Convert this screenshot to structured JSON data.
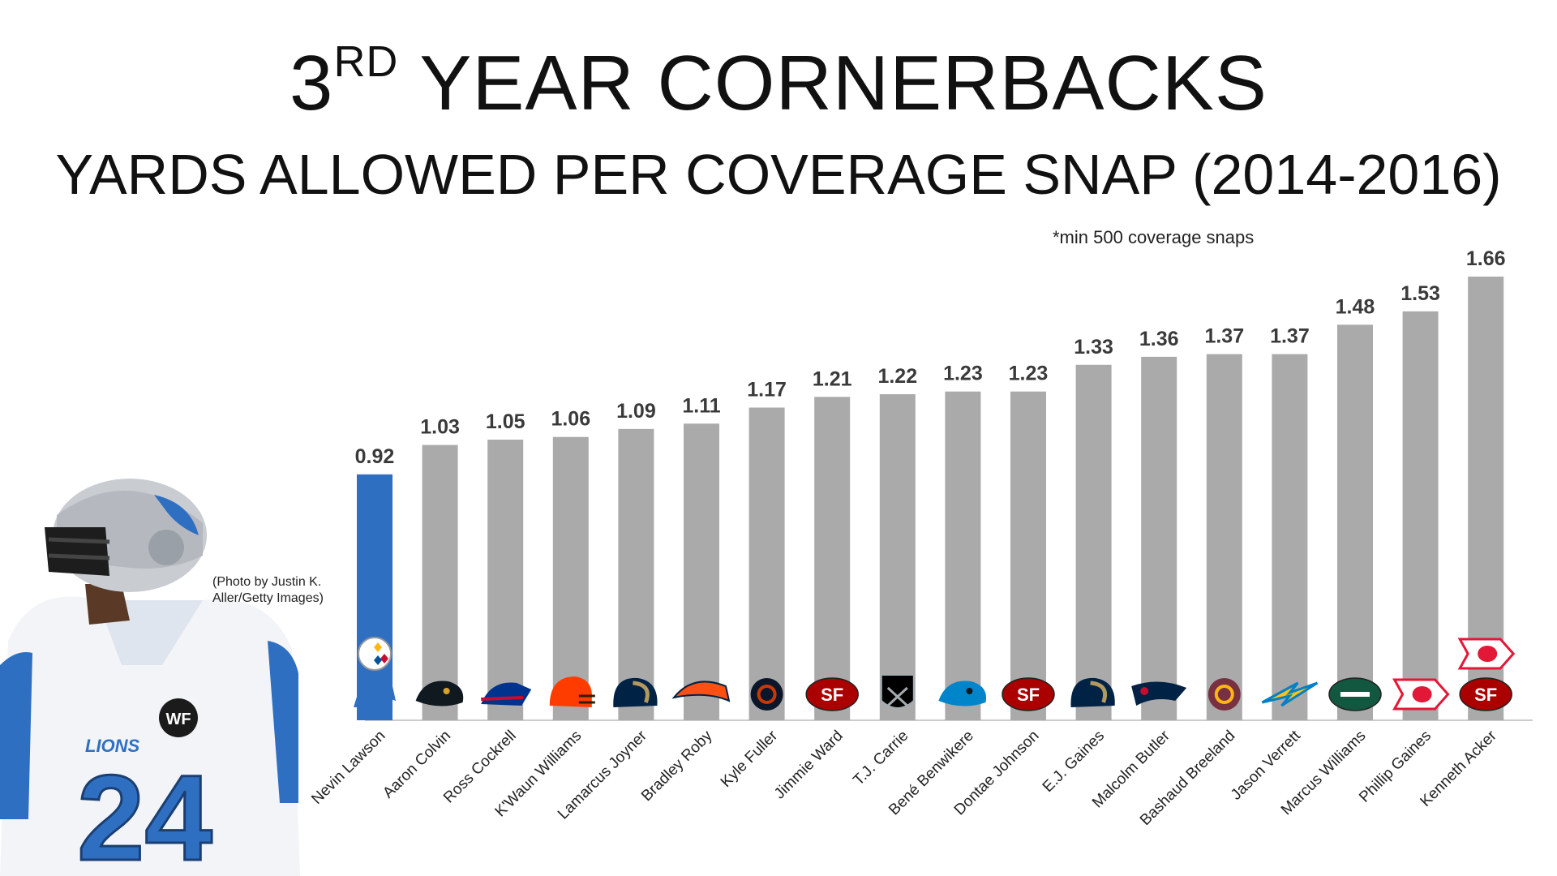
{
  "header": {
    "title_main_a": "3",
    "title_sup": "RD",
    "title_main_b": " YEAR CORNERBACKS",
    "subtitle": "YARDS ALLOWED PER COVERAGE SNAP (2014-2016)",
    "footnote": "*min 500 coverage snaps"
  },
  "photo": {
    "credit_line1": "(Photo by Justin K.",
    "credit_line2": "Aller/Getty Images)",
    "jersey_number": "24",
    "team_word": "LIONS",
    "patch_text": "WF"
  },
  "colors": {
    "highlight": "#2F6FC1",
    "bar": "#AAAAAA",
    "label": "#3a3a3a"
  },
  "chart_data": {
    "type": "bar",
    "categories": [
      "Nevin Lawson",
      "Aaron Colvin",
      "Ross Cockrell",
      "K'Waun Williams",
      "Lamarcus Joyner",
      "Bradley Roby",
      "Kyle Fuller",
      "Jimmie Ward",
      "T.J. Carrie",
      "Bené Benwikere",
      "Dontae Johnson",
      "E.J. Gaines",
      "Malcolm Butler",
      "Bashaud Breeland",
      "Jason Verrett",
      "Marcus Williams",
      "Phillip Gaines",
      "Kenneth Acker"
    ],
    "values": [
      0.92,
      1.03,
      1.05,
      1.06,
      1.09,
      1.11,
      1.17,
      1.21,
      1.22,
      1.23,
      1.23,
      1.33,
      1.36,
      1.37,
      1.37,
      1.48,
      1.53,
      1.66
    ],
    "value_labels": [
      "0.92",
      "1.03",
      "1.05",
      "1.06",
      "1.09",
      "1.11",
      "1.17",
      "1.21",
      "1.22",
      "1.23",
      "1.23",
      "1.33",
      "1.36",
      "1.37",
      "1.37",
      "1.48",
      "1.53",
      "1.66"
    ],
    "teams": [
      "lions",
      "jaguars",
      "bills",
      "browns",
      "rams",
      "broncos",
      "bears",
      "49ers",
      "raiders",
      "panthers",
      "49ers",
      "rams",
      "patriots",
      "redskins",
      "chargers",
      "jets",
      "chiefs",
      "49ers"
    ],
    "extra_team_icons": [
      [
        "steelers"
      ],
      [],
      [],
      [],
      [],
      [],
      [],
      [],
      [],
      [],
      [],
      [],
      [],
      [],
      [],
      [],
      [],
      [
        "chiefs"
      ]
    ],
    "highlight_index": 0,
    "ylim": [
      0,
      1.75
    ],
    "grid": false,
    "legend": "none"
  }
}
